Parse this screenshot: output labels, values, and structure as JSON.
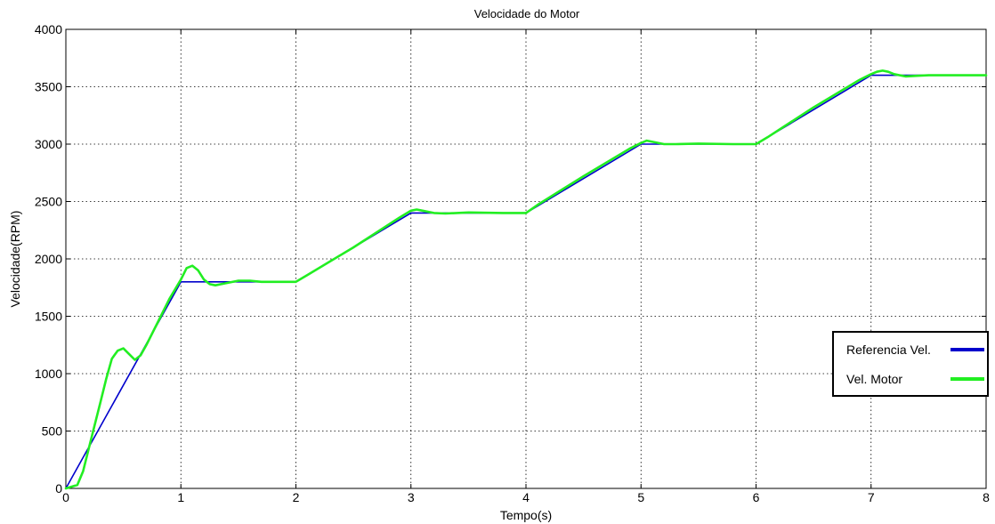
{
  "chart_data": {
    "type": "line",
    "title": "Velocidade do Motor",
    "xlabel": "Tempo(s)",
    "ylabel": "Velocidade(RPM)",
    "xlim": [
      0,
      8
    ],
    "ylim": [
      0,
      4000
    ],
    "xticks": [
      0,
      1,
      2,
      3,
      4,
      5,
      6,
      7,
      8
    ],
    "yticks": [
      0,
      500,
      1000,
      1500,
      2000,
      2500,
      3000,
      3500,
      4000
    ],
    "grid": true,
    "legend_position": "right",
    "series": [
      {
        "name": "Referencia Vel.",
        "color": "#0000CC",
        "x": [
          0,
          1,
          2,
          3,
          4,
          5,
          6,
          7,
          8
        ],
        "y": [
          0,
          1800,
          1800,
          2400,
          2400,
          3000,
          3000,
          3600,
          3600
        ]
      },
      {
        "name": "Vel. Motor",
        "color": "#22EE22",
        "x": [
          0,
          0.1,
          0.15,
          0.2,
          0.25,
          0.3,
          0.35,
          0.4,
          0.45,
          0.5,
          0.55,
          0.6,
          0.65,
          0.7,
          0.8,
          0.9,
          1.0,
          1.05,
          1.1,
          1.15,
          1.2,
          1.25,
          1.3,
          1.4,
          1.5,
          1.6,
          1.7,
          1.8,
          1.9,
          2.0,
          2.1,
          2.5,
          2.9,
          3.0,
          3.05,
          3.1,
          3.2,
          3.3,
          3.5,
          3.8,
          4.0,
          4.1,
          4.5,
          4.9,
          5.0,
          5.05,
          5.1,
          5.2,
          5.3,
          5.5,
          5.8,
          6.0,
          6.1,
          6.5,
          6.9,
          7.0,
          7.05,
          7.1,
          7.15,
          7.2,
          7.3,
          7.4,
          7.5,
          7.7,
          8.0
        ],
        "y": [
          0,
          30,
          150,
          350,
          550,
          750,
          950,
          1130,
          1200,
          1220,
          1170,
          1120,
          1160,
          1250,
          1450,
          1650,
          1820,
          1920,
          1940,
          1900,
          1820,
          1780,
          1770,
          1790,
          1810,
          1810,
          1800,
          1800,
          1800,
          1800,
          1860,
          2100,
          2360,
          2420,
          2430,
          2420,
          2400,
          2395,
          2405,
          2400,
          2400,
          2470,
          2720,
          2960,
          3010,
          3030,
          3020,
          3000,
          3000,
          3005,
          3000,
          3000,
          3060,
          3320,
          3560,
          3610,
          3630,
          3640,
          3630,
          3610,
          3590,
          3595,
          3600,
          3600,
          3600
        ]
      }
    ]
  }
}
